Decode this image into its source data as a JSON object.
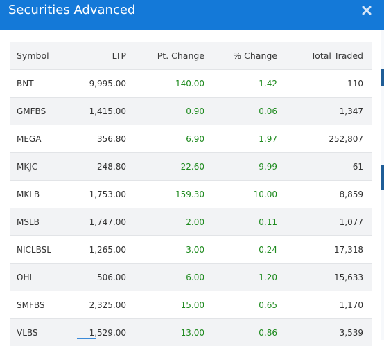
{
  "dialog": {
    "title": "Securities Advanced",
    "close_icon": "close-icon"
  },
  "colors": {
    "header": "#1479d8",
    "positive": "#1e8a1e"
  },
  "table": {
    "columns": {
      "symbol": "Symbol",
      "ltp": "LTP",
      "pt_change": "Pt. Change",
      "pct_change": "% Change",
      "total_traded": "Total Traded"
    },
    "rows": [
      {
        "symbol": "BNT",
        "ltp": "9,995.00",
        "pt_change": "140.00",
        "pct_change": "1.42",
        "total_traded": "110"
      },
      {
        "symbol": "GMFBS",
        "ltp": "1,415.00",
        "pt_change": "0.90",
        "pct_change": "0.06",
        "total_traded": "1,347"
      },
      {
        "symbol": "MEGA",
        "ltp": "356.80",
        "pt_change": "6.90",
        "pct_change": "1.97",
        "total_traded": "252,807"
      },
      {
        "symbol": "MKJC",
        "ltp": "248.80",
        "pt_change": "22.60",
        "pct_change": "9.99",
        "total_traded": "61"
      },
      {
        "symbol": "MKLB",
        "ltp": "1,753.00",
        "pt_change": "159.30",
        "pct_change": "10.00",
        "total_traded": "8,859"
      },
      {
        "symbol": "MSLB",
        "ltp": "1,747.00",
        "pt_change": "2.00",
        "pct_change": "0.11",
        "total_traded": "1,077"
      },
      {
        "symbol": "NICLBSL",
        "ltp": "1,265.00",
        "pt_change": "3.00",
        "pct_change": "0.24",
        "total_traded": "17,318"
      },
      {
        "symbol": "OHL",
        "ltp": "506.00",
        "pt_change": "6.00",
        "pct_change": "1.20",
        "total_traded": "15,633"
      },
      {
        "symbol": "SMFBS",
        "ltp": "2,325.00",
        "pt_change": "15.00",
        "pct_change": "0.65",
        "total_traded": "1,170"
      },
      {
        "symbol": "VLBS",
        "ltp": "1,529.00",
        "pt_change": "13.00",
        "pct_change": "0.86",
        "total_traded": "3,539"
      }
    ]
  }
}
